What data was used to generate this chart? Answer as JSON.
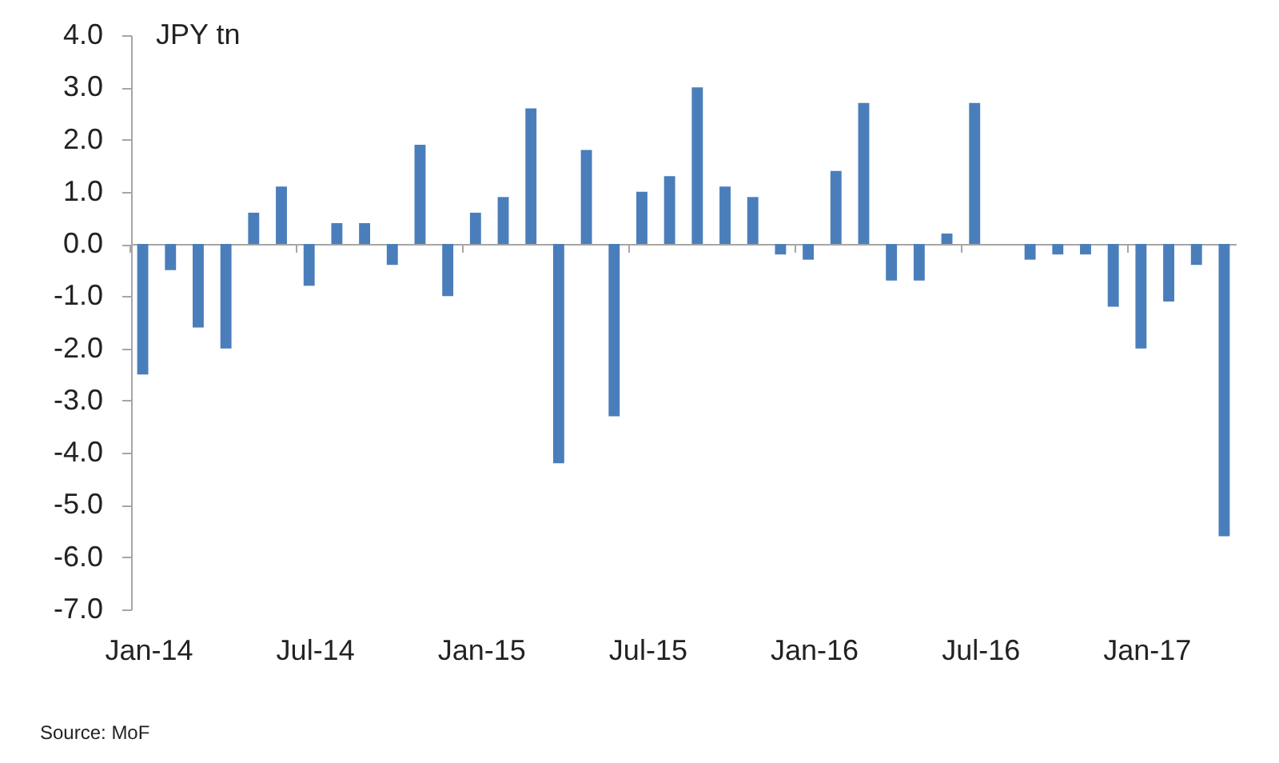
{
  "chart_data": {
    "type": "bar",
    "ylabel": "JPY tn",
    "categories": [
      "Jan-14",
      null,
      null,
      null,
      null,
      null,
      "Jul-14",
      null,
      null,
      null,
      null,
      null,
      "Jan-15",
      null,
      null,
      null,
      null,
      null,
      "Jul-15",
      null,
      null,
      null,
      null,
      null,
      "Jan-16",
      null,
      null,
      null,
      null,
      null,
      "Jul-16",
      null,
      null,
      null,
      null,
      null,
      "Jan-17",
      null,
      null,
      null
    ],
    "values": [
      -2.5,
      -0.5,
      -1.6,
      -2.0,
      0.6,
      1.1,
      -0.8,
      0.4,
      0.4,
      -0.4,
      1.9,
      -1.0,
      0.6,
      0.9,
      2.6,
      -4.2,
      1.8,
      -3.3,
      1.0,
      1.3,
      3.0,
      1.1,
      0.9,
      -0.2,
      -0.3,
      1.4,
      2.7,
      -0.7,
      -0.7,
      0.2,
      2.7,
      null,
      -0.3,
      -0.2,
      -0.2,
      -1.2,
      -2.0,
      -1.1,
      -0.4,
      -5.6
    ],
    "color": "#4a7ebb",
    "ylim": [
      -7,
      4
    ],
    "yticks": [
      {
        "value": 4,
        "label": "4.0"
      },
      {
        "value": 3,
        "label": "3.0"
      },
      {
        "value": 2,
        "label": "2.0"
      },
      {
        "value": 1,
        "label": "1.0"
      },
      {
        "value": 0,
        "label": "0.0"
      },
      {
        "value": -1,
        "label": "-1.0"
      },
      {
        "value": -2,
        "label": "-2.0"
      },
      {
        "value": -3,
        "label": "-3.0"
      },
      {
        "value": -4,
        "label": "-4.0"
      },
      {
        "value": -5,
        "label": "-5.0"
      },
      {
        "value": -6,
        "label": "-6.0"
      },
      {
        "value": -7,
        "label": "-7.0"
      }
    ],
    "annotations": [
      "Source: MoF"
    ]
  }
}
